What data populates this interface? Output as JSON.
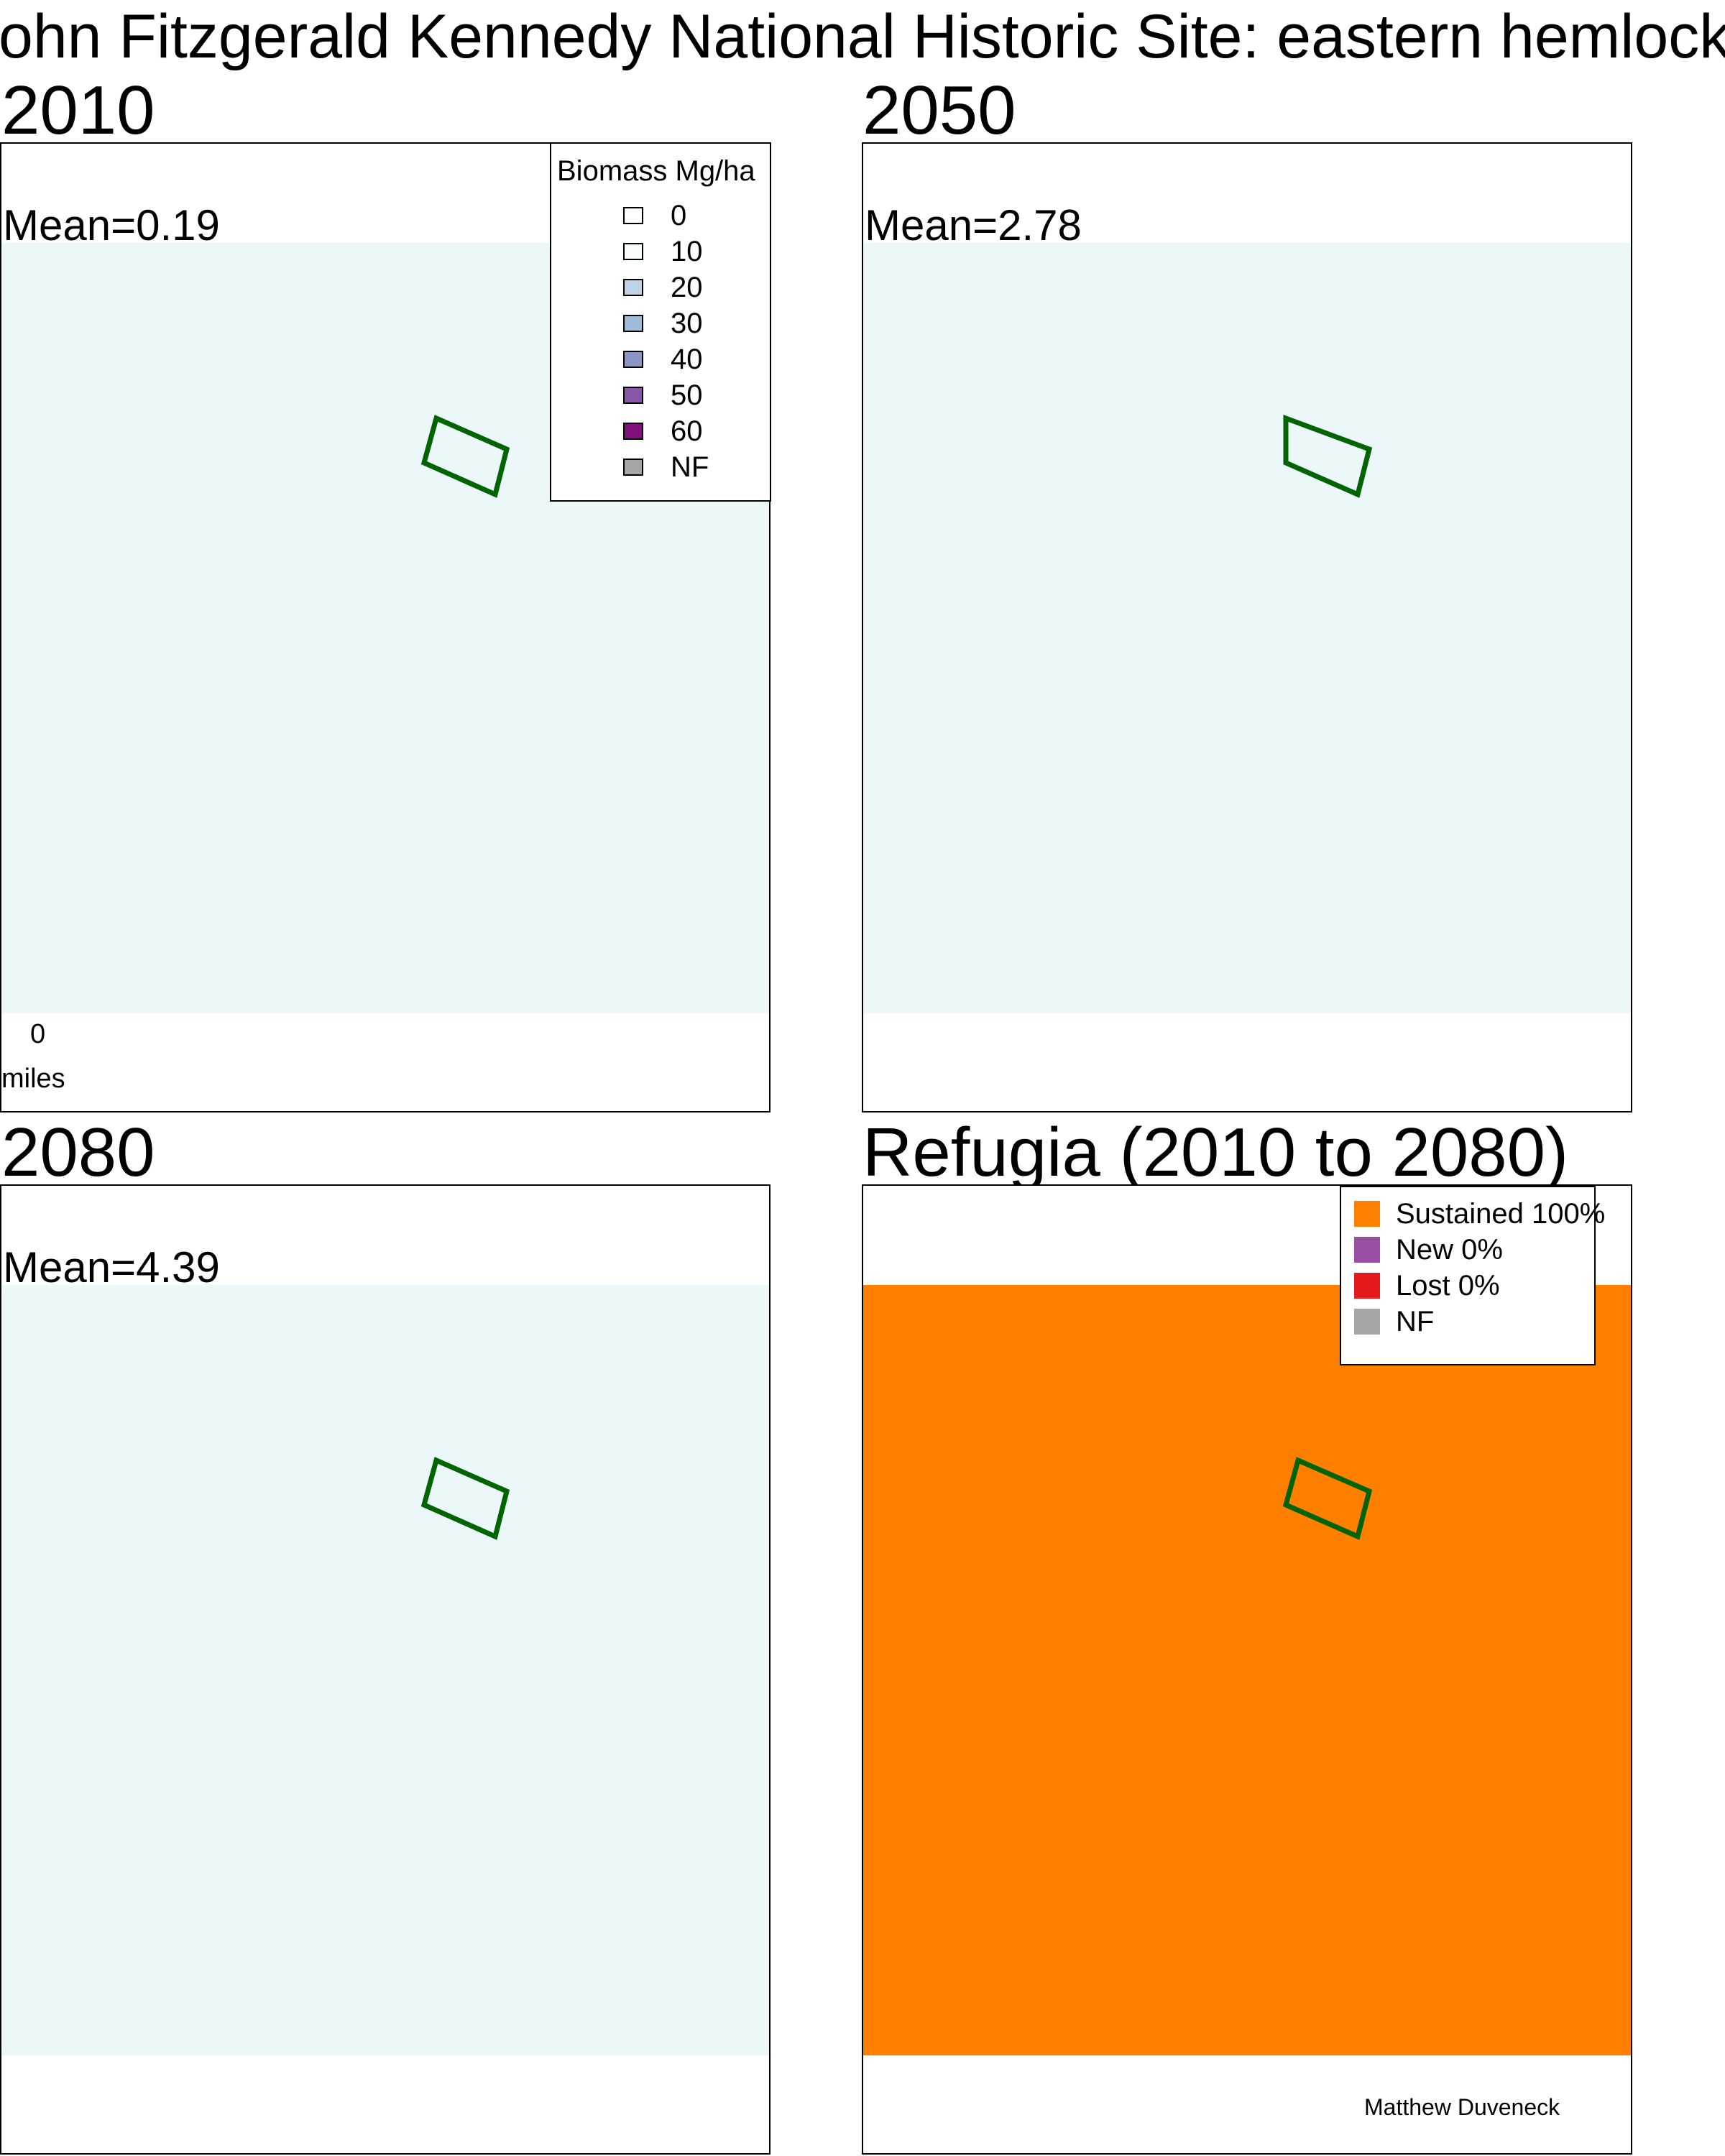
{
  "title": "John Fitzgerald Kennedy National Historic Site: eastern hemlock",
  "panels": [
    {
      "title": "2010",
      "mean": "Mean=0.19",
      "fill": "#ebf7f8"
    },
    {
      "title": "2050",
      "mean": "Mean=2.78",
      "fill": "#ebf7f8"
    },
    {
      "title": "2080",
      "mean": "Mean=4.39",
      "fill": "#ebf7f8"
    },
    {
      "title": "Refugia (2010 to 2080)",
      "mean": "",
      "fill": "#ff8000"
    }
  ],
  "biomass_legend": {
    "heading": "Biomass Mg/ha",
    "items": [
      {
        "label": "0",
        "color": "#ffffff"
      },
      {
        "label": "10",
        "color": "#f7fcfd"
      },
      {
        "label": "20",
        "color": "#bfd3e6"
      },
      {
        "label": "30",
        "color": "#9ebcda"
      },
      {
        "label": "40",
        "color": "#8c96c6"
      },
      {
        "label": "50",
        "color": "#8856a7"
      },
      {
        "label": "60",
        "color": "#810f7c"
      },
      {
        "label": "NF",
        "color": "#a6a6a6"
      }
    ]
  },
  "scale_bar": {
    "zero": "0",
    "unit": "miles"
  },
  "refugia_legend": {
    "items": [
      {
        "label": "Sustained 100%",
        "color": "#ff8000"
      },
      {
        "label": "New 0%",
        "color": "#984ea3"
      },
      {
        "label": "Lost 0%",
        "color": "#e41a1c"
      },
      {
        "label": "NF",
        "color": "#a6a6a6"
      }
    ]
  },
  "boundary_color": "#006400",
  "credit": "Matthew Duveneck"
}
